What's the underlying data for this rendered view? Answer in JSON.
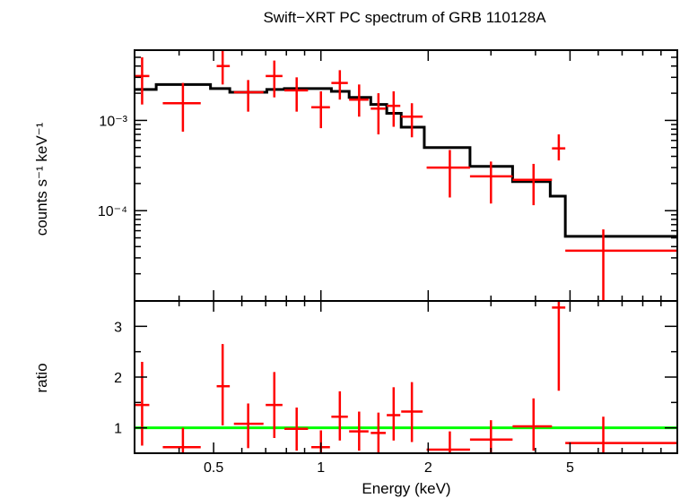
{
  "chart_data": {
    "type": "scatter",
    "title": "Swift−XRT PC spectrum of GRB 110128A",
    "xlabel": "Energy (keV)",
    "x_scale": "log",
    "xlim": [
      0.3,
      10.0
    ],
    "x_ticks": [
      {
        "value": 0.5,
        "label": "0.5"
      },
      {
        "value": 1,
        "label": "1"
      },
      {
        "value": 2,
        "label": "2"
      },
      {
        "value": 5,
        "label": "5"
      }
    ],
    "top_panel": {
      "ylabel": "counts s⁻¹ keV⁻¹",
      "y_scale": "log",
      "ylim": [
        1e-05,
        0.006
      ],
      "y_ticks": [
        {
          "value": 0.001,
          "label": "10⁻³"
        },
        {
          "value": 0.0001,
          "label": "10⁻⁴"
        }
      ],
      "data": [
        {
          "x": 0.315,
          "xlo": 0.3,
          "xhi": 0.33,
          "y": 0.0031,
          "ylo": 0.0015,
          "yhi": 0.005
        },
        {
          "x": 0.41,
          "xlo": 0.36,
          "xhi": 0.46,
          "y": 0.00155,
          "ylo": 0.00075,
          "yhi": 0.0026
        },
        {
          "x": 0.53,
          "xlo": 0.51,
          "xhi": 0.555,
          "y": 0.004,
          "ylo": 0.0025,
          "yhi": 0.006
        },
        {
          "x": 0.625,
          "xlo": 0.57,
          "xhi": 0.69,
          "y": 0.00205,
          "ylo": 0.00125,
          "yhi": 0.0028
        },
        {
          "x": 0.74,
          "xlo": 0.7,
          "xhi": 0.78,
          "y": 0.0031,
          "ylo": 0.0018,
          "yhi": 0.0046
        },
        {
          "x": 0.855,
          "xlo": 0.79,
          "xhi": 0.92,
          "y": 0.00215,
          "ylo": 0.00125,
          "yhi": 0.003
        },
        {
          "x": 1.0,
          "xlo": 0.94,
          "xhi": 1.06,
          "y": 0.0014,
          "ylo": 0.00082,
          "yhi": 0.0021
        },
        {
          "x": 1.13,
          "xlo": 1.07,
          "xhi": 1.19,
          "y": 0.0026,
          "ylo": 0.0017,
          "yhi": 0.0036
        },
        {
          "x": 1.28,
          "xlo": 1.2,
          "xhi": 1.36,
          "y": 0.0017,
          "ylo": 0.0011,
          "yhi": 0.0025
        },
        {
          "x": 1.45,
          "xlo": 1.38,
          "xhi": 1.52,
          "y": 0.00135,
          "ylo": 0.0007,
          "yhi": 0.002
        },
        {
          "x": 1.6,
          "xlo": 1.53,
          "xhi": 1.67,
          "y": 0.00145,
          "ylo": 0.00085,
          "yhi": 0.0021
        },
        {
          "x": 1.8,
          "xlo": 1.68,
          "xhi": 1.93,
          "y": 0.0011,
          "ylo": 0.00065,
          "yhi": 0.00155
        },
        {
          "x": 2.3,
          "xlo": 1.98,
          "xhi": 2.62,
          "y": 0.0003,
          "ylo": 0.00014,
          "yhi": 0.00047
        },
        {
          "x": 3.0,
          "xlo": 2.62,
          "xhi": 3.45,
          "y": 0.00024,
          "ylo": 0.00012,
          "yhi": 0.00035
        },
        {
          "x": 3.95,
          "xlo": 3.45,
          "xhi": 4.45,
          "y": 0.00022,
          "ylo": 0.000115,
          "yhi": 0.00033
        },
        {
          "x": 4.65,
          "xlo": 4.45,
          "xhi": 4.85,
          "y": 0.00049,
          "ylo": 0.00036,
          "yhi": 0.0007
        },
        {
          "x": 6.2,
          "xlo": 4.85,
          "xhi": 10.0,
          "y": 3.6e-05,
          "ylo": 1e-05,
          "yhi": 6.2e-05
        }
      ],
      "model": [
        {
          "xlo": 0.3,
          "xhi": 0.345,
          "y": 0.0022
        },
        {
          "xlo": 0.345,
          "xhi": 0.49,
          "y": 0.0025
        },
        {
          "xlo": 0.49,
          "xhi": 0.555,
          "y": 0.00225
        },
        {
          "xlo": 0.555,
          "xhi": 0.705,
          "y": 0.00205
        },
        {
          "xlo": 0.705,
          "xhi": 0.79,
          "y": 0.0022
        },
        {
          "xlo": 0.79,
          "xhi": 1.07,
          "y": 0.00225
        },
        {
          "xlo": 1.07,
          "xhi": 1.2,
          "y": 0.0021
        },
        {
          "xlo": 1.2,
          "xhi": 1.38,
          "y": 0.0018
        },
        {
          "xlo": 1.38,
          "xhi": 1.53,
          "y": 0.0015
        },
        {
          "xlo": 1.53,
          "xhi": 1.68,
          "y": 0.0012
        },
        {
          "xlo": 1.68,
          "xhi": 1.95,
          "y": 0.00084
        },
        {
          "xlo": 1.95,
          "xhi": 2.62,
          "y": 0.0005
        },
        {
          "xlo": 2.62,
          "xhi": 3.45,
          "y": 0.00031
        },
        {
          "xlo": 3.45,
          "xhi": 4.4,
          "y": 0.00021
        },
        {
          "xlo": 4.4,
          "xhi": 4.85,
          "y": 0.000145
        },
        {
          "xlo": 4.85,
          "xhi": 10.0,
          "y": 5.2e-05
        }
      ]
    },
    "bottom_panel": {
      "ylabel": "ratio",
      "y_scale": "linear",
      "ylim": [
        0.5,
        3.5
      ],
      "y_ticks": [
        {
          "value": 1,
          "label": "1"
        },
        {
          "value": 2,
          "label": "2"
        },
        {
          "value": 3,
          "label": "3"
        }
      ],
      "reference_line": 1,
      "data": [
        {
          "x": 0.315,
          "xlo": 0.3,
          "xhi": 0.33,
          "y": 1.45,
          "ylo": 0.65,
          "yhi": 2.3
        },
        {
          "x": 0.41,
          "xlo": 0.36,
          "xhi": 0.46,
          "y": 0.62,
          "ylo": 0.5,
          "yhi": 1.0
        },
        {
          "x": 0.53,
          "xlo": 0.51,
          "xhi": 0.555,
          "y": 1.82,
          "ylo": 1.05,
          "yhi": 2.65
        },
        {
          "x": 0.625,
          "xlo": 0.57,
          "xhi": 0.69,
          "y": 1.08,
          "ylo": 0.6,
          "yhi": 1.48
        },
        {
          "x": 0.74,
          "xlo": 0.7,
          "xhi": 0.78,
          "y": 1.45,
          "ylo": 0.8,
          "yhi": 2.1
        },
        {
          "x": 0.855,
          "xlo": 0.79,
          "xhi": 0.92,
          "y": 0.98,
          "ylo": 0.55,
          "yhi": 1.4
        },
        {
          "x": 1.0,
          "xlo": 0.94,
          "xhi": 1.06,
          "y": 0.62,
          "ylo": 0.5,
          "yhi": 0.95
        },
        {
          "x": 1.13,
          "xlo": 1.07,
          "xhi": 1.19,
          "y": 1.22,
          "ylo": 0.75,
          "yhi": 1.72
        },
        {
          "x": 1.28,
          "xlo": 1.2,
          "xhi": 1.36,
          "y": 0.93,
          "ylo": 0.55,
          "yhi": 1.32
        },
        {
          "x": 1.45,
          "xlo": 1.38,
          "xhi": 1.52,
          "y": 0.9,
          "ylo": 0.5,
          "yhi": 1.3
        },
        {
          "x": 1.6,
          "xlo": 1.53,
          "xhi": 1.67,
          "y": 1.25,
          "ylo": 0.75,
          "yhi": 1.8
        },
        {
          "x": 1.8,
          "xlo": 1.68,
          "xhi": 1.93,
          "y": 1.32,
          "ylo": 0.72,
          "yhi": 1.9
        },
        {
          "x": 2.3,
          "xlo": 1.98,
          "xhi": 2.62,
          "y": 0.57,
          "ylo": 0.5,
          "yhi": 0.93
        },
        {
          "x": 3.0,
          "xlo": 2.62,
          "xhi": 3.45,
          "y": 0.77,
          "ylo": 0.5,
          "yhi": 1.15
        },
        {
          "x": 3.95,
          "xlo": 3.45,
          "xhi": 4.45,
          "y": 1.03,
          "ylo": 0.55,
          "yhi": 1.58
        },
        {
          "x": 4.65,
          "xlo": 4.45,
          "xhi": 4.85,
          "y": 3.37,
          "ylo": 1.73,
          "yhi": 3.5
        },
        {
          "x": 6.2,
          "xlo": 4.85,
          "xhi": 10.0,
          "y": 0.7,
          "ylo": 0.5,
          "yhi": 1.22
        }
      ]
    },
    "colors": {
      "data": "#ff0000",
      "model": "#000000",
      "reference": "#00ff00",
      "axes": "#000000"
    }
  }
}
